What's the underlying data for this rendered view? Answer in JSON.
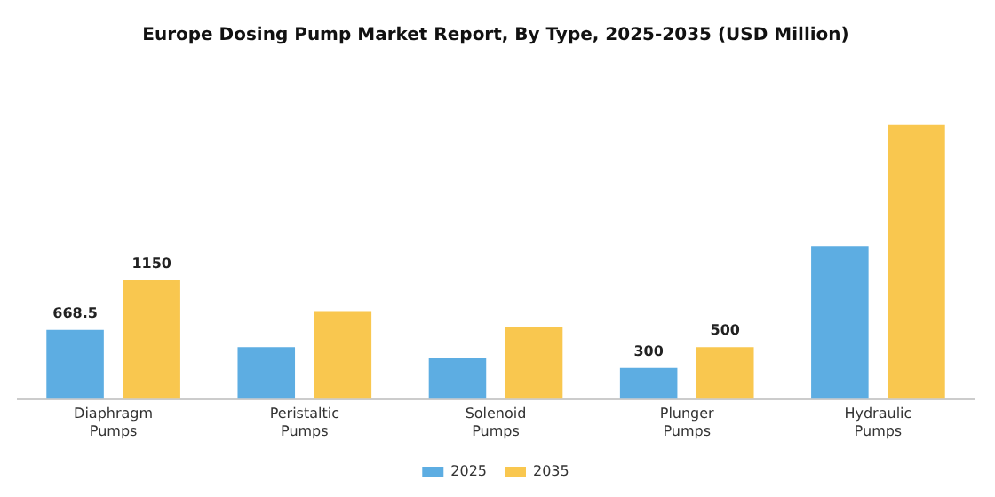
{
  "chart_data": {
    "type": "bar",
    "title": "Europe Dosing Pump Market Report, By Type, 2025-2035 (USD Million)",
    "categories": [
      "Diaphragm Pumps",
      "Peristaltic Pumps",
      "Solenoid Pumps",
      "Plunger Pumps",
      "Hydraulic Pumps"
    ],
    "series": [
      {
        "name": "2025",
        "color": "#5dade2",
        "values": [
          668.5,
          500,
          400,
          300,
          1480
        ],
        "value_labels": [
          "668.5",
          null,
          null,
          "300",
          null
        ]
      },
      {
        "name": "2035",
        "color": "#f9c74f",
        "values": [
          1150,
          850,
          700,
          500,
          2650
        ],
        "value_labels": [
          "1150",
          null,
          null,
          "500",
          null
        ]
      }
    ],
    "tick_labels": "x",
    "grid": false,
    "legend": "bottom"
  }
}
